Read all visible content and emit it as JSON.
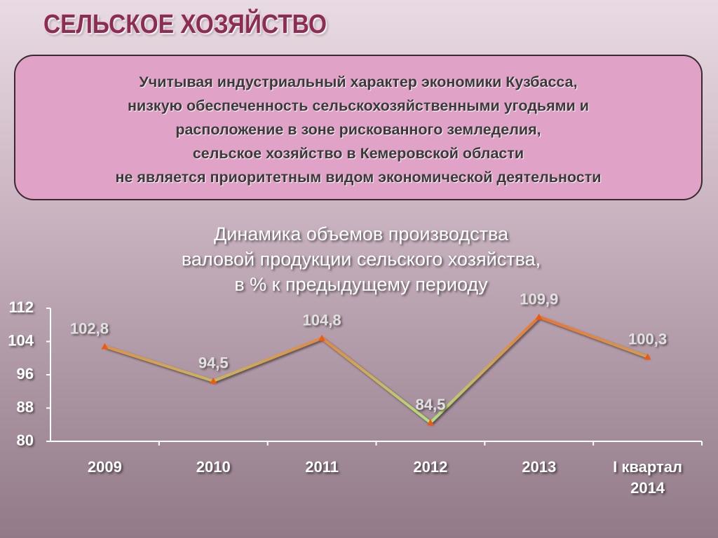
{
  "header": {
    "title": "СЕЛЬСКОЕ ХОЗЯЙСТВО"
  },
  "notice": {
    "lines": [
      "Учитывая индустриальный характер экономики Кузбасса,",
      "низкую обеспеченность сельскохозяйственными угодьями и",
      "расположение в зоне рискованного земледелия,",
      "сельское хозяйство в Кемеровской области",
      "не является приоритетным видом экономической деятельности"
    ]
  },
  "chart_data": {
    "type": "line",
    "title": [
      "Динамика объемов производства",
      "валовой продукции сельского хозяйства,",
      "в % к предыдущему периоду"
    ],
    "categories": [
      "2009",
      "2010",
      "2011",
      "2012",
      "2013",
      "I квартал 2014"
    ],
    "values": [
      102.8,
      94.5,
      104.8,
      84.5,
      109.9,
      100.3
    ],
    "value_labels": [
      "102,8",
      "94,5",
      "104,8",
      "84,5",
      "109,9",
      "100,3"
    ],
    "colors": [
      "#f06a2a",
      "#a8f58a"
    ],
    "marker_color": "#f05a10",
    "ylim": [
      80,
      112
    ],
    "yticks": [
      80,
      88,
      96,
      104,
      112
    ],
    "grid": false
  }
}
